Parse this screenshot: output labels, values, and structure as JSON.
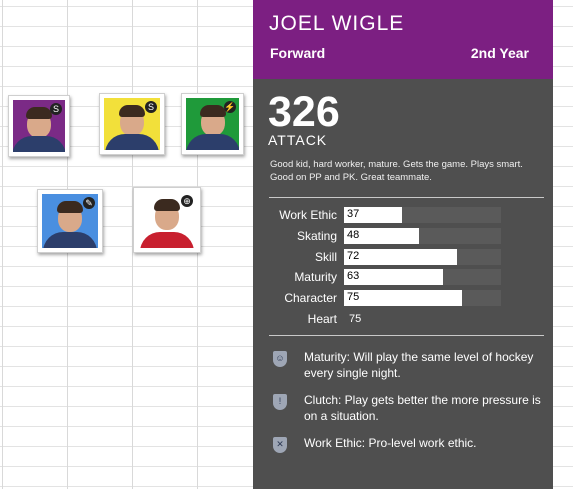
{
  "player": {
    "name": "JOEL WIGLE",
    "position": "Forward",
    "year": "2nd Year",
    "score": "326",
    "score_type": "ATTACK",
    "description": "Good kid, hard worker, mature.  Gets the game.  Plays smart. Good on PP and PK. Great teammate."
  },
  "stats": [
    {
      "label": "Work Ethic",
      "value": 37
    },
    {
      "label": "Skating",
      "value": 48
    },
    {
      "label": "Skill",
      "value": 72
    },
    {
      "label": "Maturity",
      "value": 63
    },
    {
      "label": "Character",
      "value": 75
    }
  ],
  "heart": {
    "label": "Heart",
    "value": "75"
  },
  "traits": [
    {
      "text": "Maturity: Will play the same level of hockey every single night.",
      "icon": "face-shield-icon"
    },
    {
      "text": "Clutch: Play gets better the more pressure is on a situation.",
      "icon": "exclamation-shield-icon"
    },
    {
      "text": "Work Ethic: Pro-level work ethic.",
      "icon": "tools-shield-icon"
    }
  ],
  "cards": [
    {
      "bg": "#7b2a86",
      "jersey": "#2c3e6b",
      "badge": "S"
    },
    {
      "bg": "#f2e03a",
      "jersey": "#2c3e6b",
      "badge": "S"
    },
    {
      "bg": "#1f9a3a",
      "jersey": "#2c3e6b",
      "badge": "⚡"
    },
    {
      "bg": "#4a8fe0",
      "jersey": "#2c3e6b",
      "badge": "✎"
    },
    {
      "bg": "#ffffff",
      "jersey": "#c8202f",
      "badge": "⊕"
    }
  ],
  "colors": {
    "header": "#7c1f82",
    "panel": "#4f4f4f"
  }
}
